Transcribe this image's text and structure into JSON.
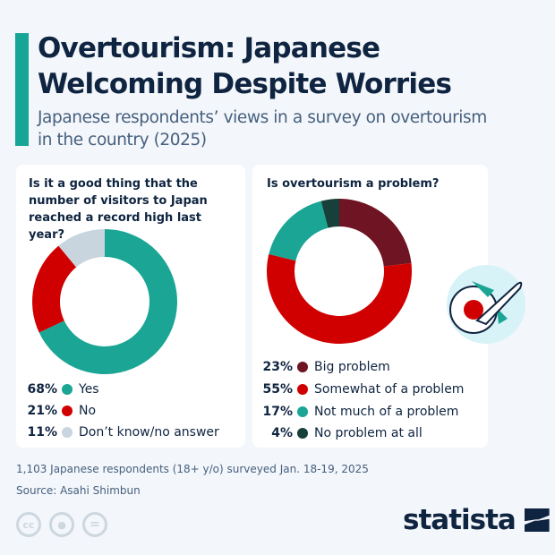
{
  "header": {
    "title": "Overtourism: Japanese Welcoming Despite Worries",
    "subtitle": "Japanese respondents’ views in a survey on overtourism in the country (2025)"
  },
  "chart_data": [
    {
      "type": "pie",
      "donut": true,
      "title": "Is it a good thing that the number of visitors to Japan reached a record high last year?",
      "labels": [
        "Yes",
        "No",
        "Don’t know/no answer"
      ],
      "values": [
        68,
        21,
        11
      ],
      "value_labels": [
        "68%",
        "21%",
        "11%"
      ],
      "colors": [
        "#1aa595",
        "#d00000",
        "#c9d5de"
      ],
      "legend": "bottom"
    },
    {
      "type": "pie",
      "donut": true,
      "title": "Is overtourism a problem?",
      "labels": [
        "Big problem",
        "Somewhat of a problem",
        "Not much of a problem",
        "No problem at all"
      ],
      "values": [
        23,
        55,
        17,
        4
      ],
      "value_labels": [
        "23%",
        "55%",
        "17%",
        "4%"
      ],
      "colors": [
        "#6e1423",
        "#d00000",
        "#1aa595",
        "#17403a"
      ],
      "legend": "bottom"
    }
  ],
  "footer": {
    "note": "1,103 Japanese respondents (18+ y/o) surveyed Jan. 18-19, 2025",
    "source": "Source: Asahi Shimbun",
    "cc": "cc",
    "eq": "=",
    "logo": "statista"
  },
  "icons": [
    "plane-over-japan-flag-icon",
    "cc-icon",
    "person-icon",
    "equals-icon",
    "statista-logo"
  ]
}
